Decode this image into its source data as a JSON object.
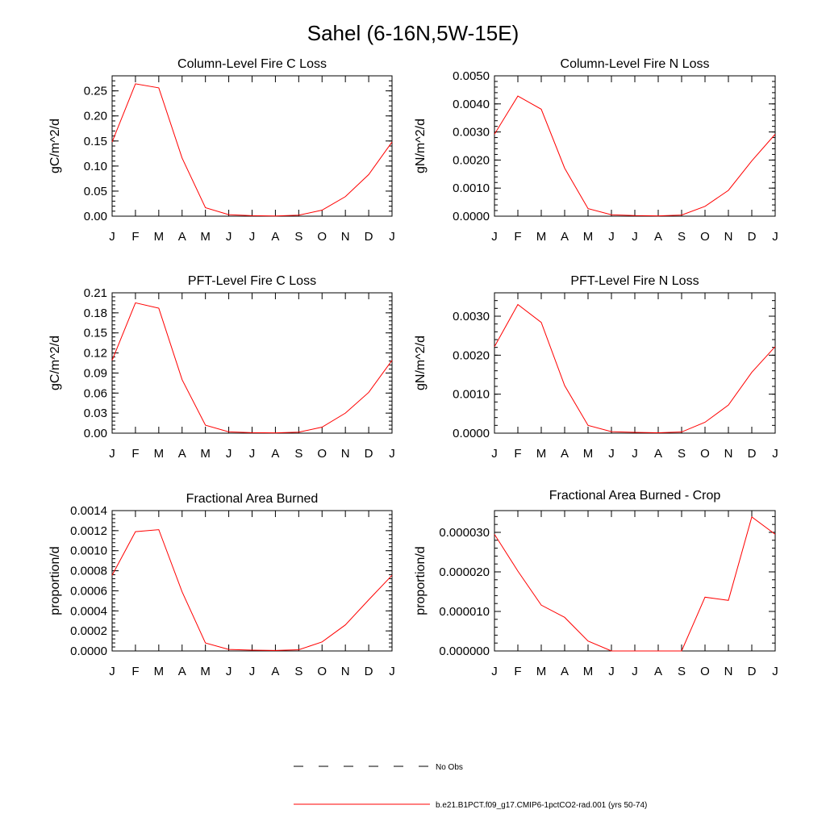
{
  "figure": {
    "title": "Sahel (6-16N,5W-15E)",
    "legend": {
      "placement": "bottom-center",
      "entries": [
        {
          "label": "No Obs",
          "color": "#000000",
          "dashed": true
        },
        {
          "label": "b.e21.B1PCT.f09_g17.CMIP6-1pctCO2-rad.001 (yrs 50-74)",
          "color": "#ff0000",
          "dashed": false
        }
      ]
    }
  },
  "chart_data": [
    {
      "type": "line",
      "title": "Column-Level Fire C Loss",
      "xlabel": "",
      "ylabel": "gC/m^2/d",
      "categories": [
        "J",
        "F",
        "M",
        "A",
        "M",
        "J",
        "J",
        "A",
        "S",
        "O",
        "N",
        "D",
        "J"
      ],
      "ylim": [
        0,
        0.28
      ],
      "yticks": [
        0.0,
        0.05,
        0.1,
        0.15,
        0.2,
        0.25
      ],
      "ytick_labels": [
        "0.00",
        "0.05",
        "0.10",
        "0.15",
        "0.20",
        "0.25"
      ],
      "series": [
        {
          "color": "#ff0000",
          "values": [
            0.148,
            0.264,
            0.256,
            0.116,
            0.017,
            0.003,
            0.001,
            0.0005,
            0.002,
            0.012,
            0.039,
            0.083,
            0.148
          ]
        }
      ]
    },
    {
      "type": "line",
      "title": "Column-Level Fire N Loss",
      "xlabel": "",
      "ylabel": "gN/m^2/d",
      "categories": [
        "J",
        "F",
        "M",
        "A",
        "M",
        "J",
        "J",
        "A",
        "S",
        "O",
        "N",
        "D",
        "J"
      ],
      "ylim": [
        0,
        0.005
      ],
      "yticks": [
        0.0,
        0.001,
        0.002,
        0.003,
        0.004,
        0.005
      ],
      "ytick_labels": [
        "0.0000",
        "0.0010",
        "0.0020",
        "0.0030",
        "0.0040",
        "0.0050"
      ],
      "series": [
        {
          "color": "#ff0000",
          "values": [
            0.00292,
            0.00428,
            0.00381,
            0.00171,
            0.00027,
            5e-05,
            2e-05,
            1e-05,
            4e-05,
            0.00035,
            0.00092,
            0.00197,
            0.00292
          ]
        }
      ]
    },
    {
      "type": "line",
      "title": "PFT-Level Fire C Loss",
      "xlabel": "",
      "ylabel": "gC/m^2/d",
      "categories": [
        "J",
        "F",
        "M",
        "A",
        "M",
        "J",
        "J",
        "A",
        "S",
        "O",
        "N",
        "D",
        "J"
      ],
      "ylim": [
        0,
        0.21
      ],
      "yticks": [
        0.0,
        0.03,
        0.06,
        0.09,
        0.12,
        0.15,
        0.18,
        0.21
      ],
      "ytick_labels": [
        "0.00",
        "0.03",
        "0.06",
        "0.09",
        "0.12",
        "0.15",
        "0.18",
        "0.21"
      ],
      "series": [
        {
          "color": "#ff0000",
          "values": [
            0.109,
            0.195,
            0.187,
            0.08,
            0.012,
            0.002,
            0.0008,
            0.0005,
            0.0015,
            0.009,
            0.03,
            0.061,
            0.109
          ]
        }
      ]
    },
    {
      "type": "line",
      "title": "PFT-Level Fire N Loss",
      "xlabel": "",
      "ylabel": "gN/m^2/d",
      "categories": [
        "J",
        "F",
        "M",
        "A",
        "M",
        "J",
        "J",
        "A",
        "S",
        "O",
        "N",
        "D",
        "J"
      ],
      "ylim": [
        0,
        0.0036
      ],
      "yticks": [
        0.0,
        0.001,
        0.002,
        0.003
      ],
      "ytick_labels": [
        "0.0000",
        "0.0010",
        "0.0020",
        "0.0030"
      ],
      "series": [
        {
          "color": "#ff0000",
          "values": [
            0.00222,
            0.0033,
            0.00284,
            0.00122,
            0.0002,
            4e-05,
            2e-05,
            1e-05,
            3e-05,
            0.00028,
            0.00072,
            0.00156,
            0.00222
          ]
        }
      ]
    },
    {
      "type": "line",
      "title": "Fractional Area Burned",
      "xlabel": "",
      "ylabel": "proportion/d",
      "categories": [
        "J",
        "F",
        "M",
        "A",
        "M",
        "J",
        "J",
        "A",
        "S",
        "O",
        "N",
        "D",
        "J"
      ],
      "ylim": [
        0,
        0.0014
      ],
      "yticks": [
        0.0,
        0.0002,
        0.0004,
        0.0006,
        0.0008,
        0.001,
        0.0012,
        0.0014
      ],
      "ytick_labels": [
        "0.0000",
        "0.0002",
        "0.0004",
        "0.0006",
        "0.0008",
        "0.0010",
        "0.0012",
        "0.0014"
      ],
      "series": [
        {
          "color": "#ff0000",
          "values": [
            0.000755,
            0.00119,
            0.00121,
            0.00059,
            8e-05,
            1.5e-05,
            8e-06,
            5e-06,
            1.2e-05,
            9e-05,
            0.00026,
            0.00051,
            0.000755
          ]
        }
      ]
    },
    {
      "type": "line",
      "title": "Fractional Area Burned - Crop",
      "xlabel": "",
      "ylabel": "proportion/d",
      "categories": [
        "J",
        "F",
        "M",
        "A",
        "M",
        "J",
        "J",
        "A",
        "S",
        "O",
        "N",
        "D",
        "J"
      ],
      "ylim": [
        0,
        3.55e-05
      ],
      "yticks": [
        0.0,
        1e-05,
        2e-05,
        3e-05
      ],
      "ytick_labels": [
        "0.000000",
        "0.000010",
        "0.000020",
        "0.000030"
      ],
      "series": [
        {
          "color": "#ff0000",
          "values": [
            2.95e-05,
            2.02e-05,
            1.16e-05,
            8.5e-06,
            2.5e-06,
            0.0,
            0.0,
            0.0,
            0.0,
            1.36e-05,
            1.28e-05,
            3.39e-05,
            2.95e-05
          ]
        }
      ]
    }
  ]
}
